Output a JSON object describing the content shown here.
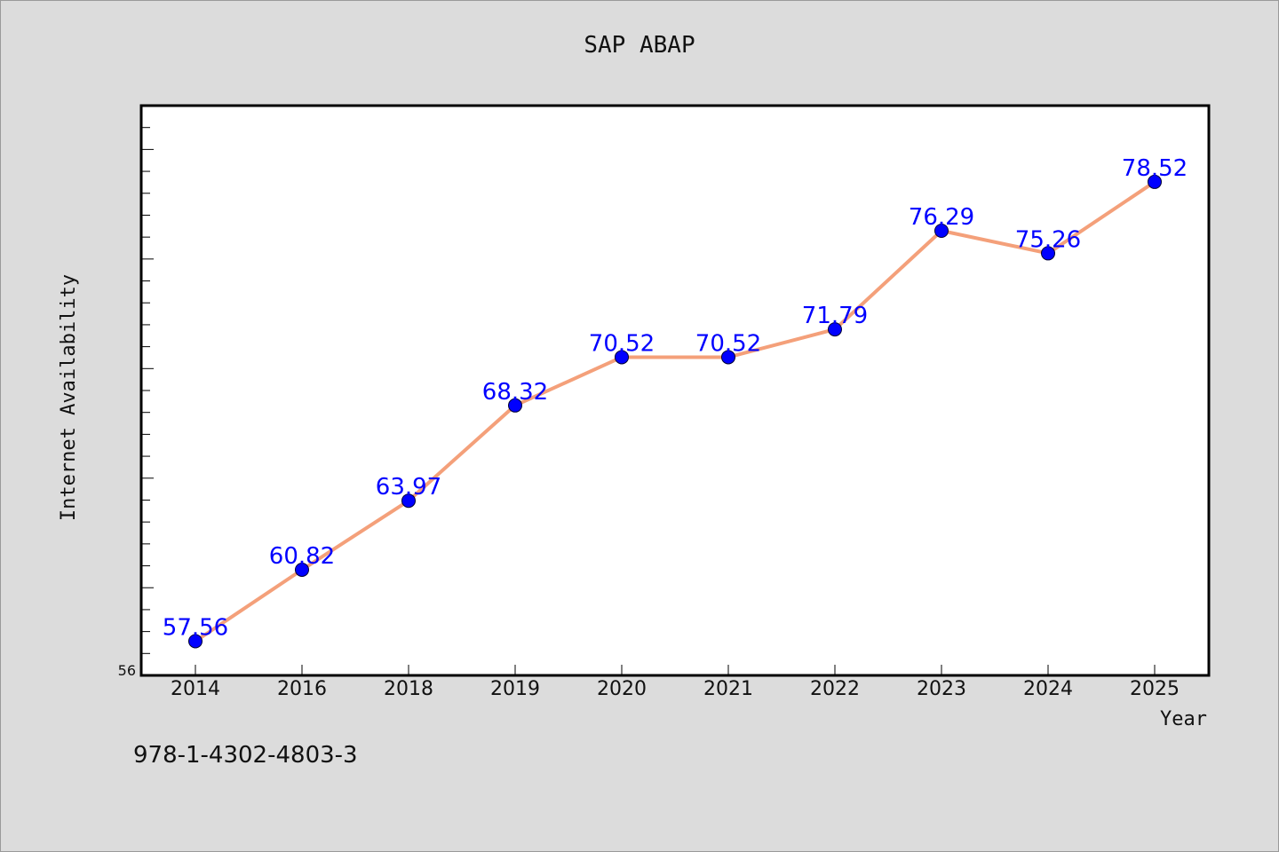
{
  "chart_data": {
    "type": "line",
    "title": "SAP ABAP",
    "xlabel": "Year",
    "ylabel": "Internet Availability",
    "categories": [
      "2014",
      "2016",
      "2018",
      "2019",
      "2020",
      "2021",
      "2022",
      "2023",
      "2024",
      "2025"
    ],
    "series": [
      {
        "values": [
          57.56,
          60.82,
          63.97,
          68.32,
          70.52,
          70.52,
          71.79,
          76.29,
          75.26,
          78.52
        ],
        "data_labels": [
          "57.56",
          "60.82",
          "63.97",
          "68.32",
          "70.52",
          "70.52",
          "71.79",
          "76.29",
          "75.26",
          "78.52"
        ]
      }
    ],
    "y_tick_labels": [
      "56"
    ],
    "ylim": [
      56,
      82
    ],
    "grid": false,
    "line_color": "#f4a07a",
    "marker_color": "#0000ff",
    "label_color": "#0000ff",
    "plot_background": "#ffffff",
    "figure_background": "#dcdcdc"
  },
  "footer": {
    "code": "978-1-4302-4803-3"
  }
}
